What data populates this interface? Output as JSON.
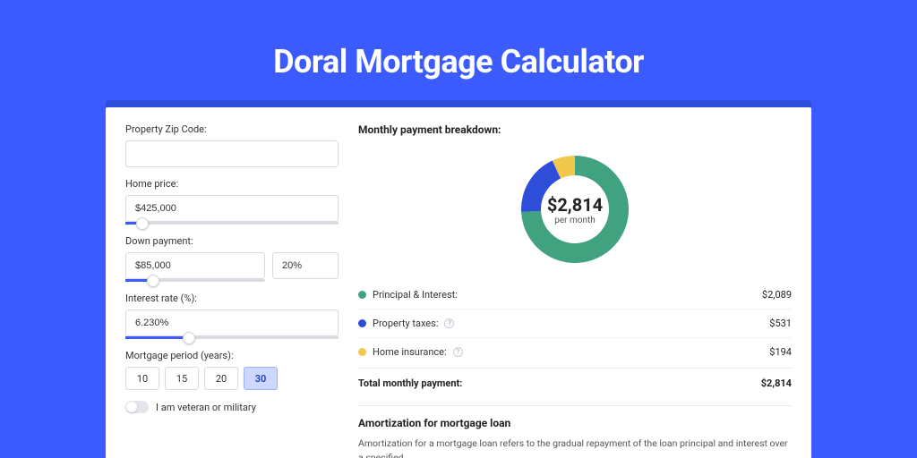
{
  "page": {
    "background_color": "#3b5bff",
    "card_shadow_color": "#2e4dd8",
    "card_bg": "#ffffff"
  },
  "title": "Doral Mortgage Calculator",
  "form": {
    "zip": {
      "label": "Property Zip Code:",
      "value": ""
    },
    "home_price": {
      "label": "Home price:",
      "value": "$425,000",
      "slider_pct": 8
    },
    "down_payment": {
      "label": "Down payment:",
      "value": "$85,000",
      "pct_value": "20%",
      "slider_pct": 20
    },
    "interest_rate": {
      "label": "Interest rate (%):",
      "value": "6.230%",
      "slider_pct": 30
    },
    "period": {
      "label": "Mortgage period (years):",
      "options": [
        "10",
        "15",
        "20",
        "30"
      ],
      "active_index": 3
    },
    "veteran": {
      "label": "I am veteran or military",
      "on": false
    }
  },
  "breakdown": {
    "title": "Monthly payment breakdown:",
    "center_value": "$2,814",
    "center_sub": "per month",
    "chart": {
      "type": "donut",
      "size": 120,
      "thickness": 22,
      "slices": [
        {
          "label": "Principal & Interest:",
          "value": 2089,
          "display": "$2,089",
          "color": "#40a27f",
          "has_info": false
        },
        {
          "label": "Property taxes:",
          "value": 531,
          "display": "$531",
          "color": "#2e4dd8",
          "has_info": true
        },
        {
          "label": "Home insurance:",
          "value": 194,
          "display": "$194",
          "color": "#f1c84c",
          "has_info": true
        }
      ]
    },
    "total_label": "Total monthly payment:",
    "total_value": "$2,814"
  },
  "amortization": {
    "title": "Amortization for mortgage loan",
    "body": "Amortization for a mortgage loan refers to the gradual repayment of the loan principal and interest over a specified"
  },
  "styling": {
    "input_border": "#d9dbe0",
    "slider_fill": "#3b5bff",
    "slider_track": "#d9dbe0",
    "period_active_bg": "#cdd8ff",
    "period_active_border": "#9db2ff",
    "text_color": "#333333",
    "title_color": "#ffffff"
  }
}
